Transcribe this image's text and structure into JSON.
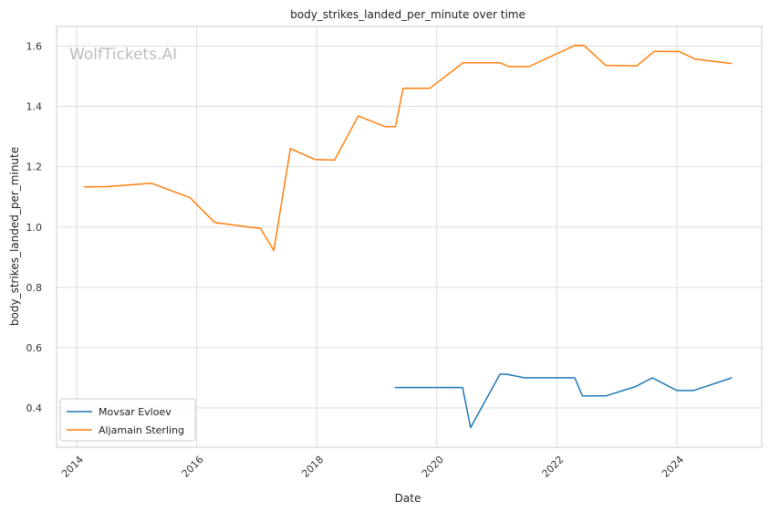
{
  "watermark": "WolfTickets.AI",
  "chart_data": {
    "type": "line",
    "title": "body_strikes_landed_per_minute over time",
    "xlabel": "Date",
    "ylabel": "body_strikes_landed_per_minute",
    "xlim": [
      "2013-09-01",
      "2025-06-01"
    ],
    "ylim": [
      0.27,
      1.665
    ],
    "x_ticks": [
      "2014",
      "2016",
      "2018",
      "2020",
      "2022",
      "2024"
    ],
    "y_ticks": [
      "0.4",
      "0.6",
      "0.8",
      "1.0",
      "1.2",
      "1.4",
      "1.6"
    ],
    "grid": true,
    "legend_position": "lower-left",
    "series": [
      {
        "name": "Movsar Evloev",
        "color": "#1f77b4",
        "points": [
          [
            "2019-04-20",
            0.468
          ],
          [
            "2020-06-06",
            0.468
          ],
          [
            "2020-07-25",
            0.335
          ],
          [
            "2021-01-20",
            0.512
          ],
          [
            "2021-03-01",
            0.512
          ],
          [
            "2021-06-20",
            0.5
          ],
          [
            "2022-04-20",
            0.5
          ],
          [
            "2022-06-05",
            0.44
          ],
          [
            "2022-10-25",
            0.44
          ],
          [
            "2023-04-20",
            0.47
          ],
          [
            "2023-08-05",
            0.5
          ],
          [
            "2024-01-01",
            0.458
          ],
          [
            "2024-04-10",
            0.458
          ],
          [
            "2024-12-01",
            0.5
          ]
        ]
      },
      {
        "name": "Aljamain Sterling",
        "color": "#ff7f0e",
        "points": [
          [
            "2014-02-15",
            1.133
          ],
          [
            "2014-07-01",
            1.134
          ],
          [
            "2015-04-01",
            1.145
          ],
          [
            "2015-11-20",
            1.098
          ],
          [
            "2016-04-20",
            1.015
          ],
          [
            "2017-01-25",
            0.995
          ],
          [
            "2017-04-15",
            0.922
          ],
          [
            "2017-07-25",
            1.26
          ],
          [
            "2017-12-20",
            1.224
          ],
          [
            "2018-04-20",
            1.222
          ],
          [
            "2018-09-10",
            1.368
          ],
          [
            "2019-02-20",
            1.333
          ],
          [
            "2019-04-25",
            1.333
          ],
          [
            "2019-06-10",
            1.46
          ],
          [
            "2019-11-20",
            1.46
          ],
          [
            "2020-06-10",
            1.545
          ],
          [
            "2021-01-20",
            1.545
          ],
          [
            "2021-03-15",
            1.532
          ],
          [
            "2021-07-15",
            1.532
          ],
          [
            "2022-04-20",
            1.602
          ],
          [
            "2022-06-15",
            1.602
          ],
          [
            "2022-10-25",
            1.536
          ],
          [
            "2023-05-01",
            1.534
          ],
          [
            "2023-08-15",
            1.582
          ],
          [
            "2024-01-15",
            1.582
          ],
          [
            "2024-04-20",
            1.557
          ],
          [
            "2024-12-01",
            1.542
          ]
        ]
      }
    ]
  }
}
